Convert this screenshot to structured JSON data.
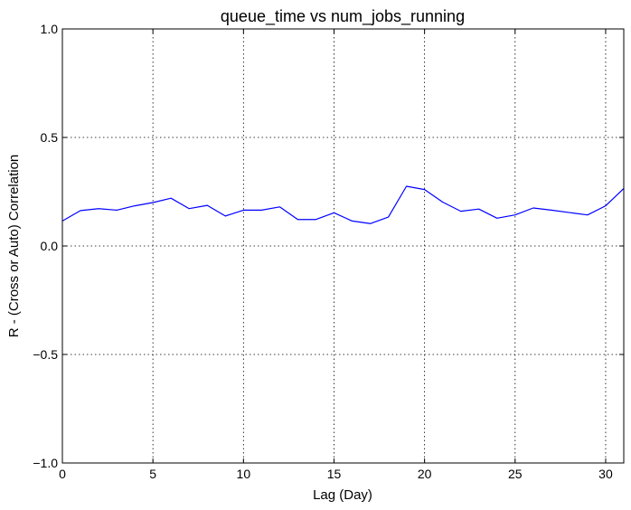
{
  "chart_data": {
    "type": "line",
    "title": "queue_time vs num_jobs_running",
    "xlabel": "Lag (Day)",
    "ylabel": "R - (Cross or Auto) Correlation",
    "xlim": [
      0,
      31
    ],
    "ylim": [
      -1.0,
      1.0
    ],
    "xticks": [
      0,
      5,
      10,
      15,
      20,
      25,
      30
    ],
    "xtick_labels": [
      "0",
      "5",
      "10",
      "15",
      "20",
      "25",
      "30"
    ],
    "yticks": [
      -1.0,
      -0.5,
      0.0,
      0.5,
      1.0
    ],
    "ytick_labels": [
      "−1.0",
      "−0.5",
      "0.0",
      "0.5",
      "1.0"
    ],
    "grid": true,
    "line_color": "#0000ff",
    "series": [
      {
        "x": [
          0,
          1,
          2,
          3,
          4,
          5,
          6,
          7,
          8,
          9,
          10,
          11,
          12,
          13,
          14,
          15,
          16,
          17,
          18,
          19,
          20,
          21,
          22,
          23,
          24,
          25,
          26,
          27,
          28,
          29,
          30,
          31
        ],
        "values": [
          0.115,
          0.163,
          0.172,
          0.165,
          0.185,
          0.2,
          0.22,
          0.172,
          0.187,
          0.138,
          0.165,
          0.165,
          0.18,
          0.122,
          0.122,
          0.153,
          0.115,
          0.103,
          0.133,
          0.275,
          0.26,
          0.202,
          0.16,
          0.17,
          0.128,
          0.143,
          0.175,
          0.165,
          0.154,
          0.143,
          0.185,
          0.265
        ]
      }
    ]
  }
}
